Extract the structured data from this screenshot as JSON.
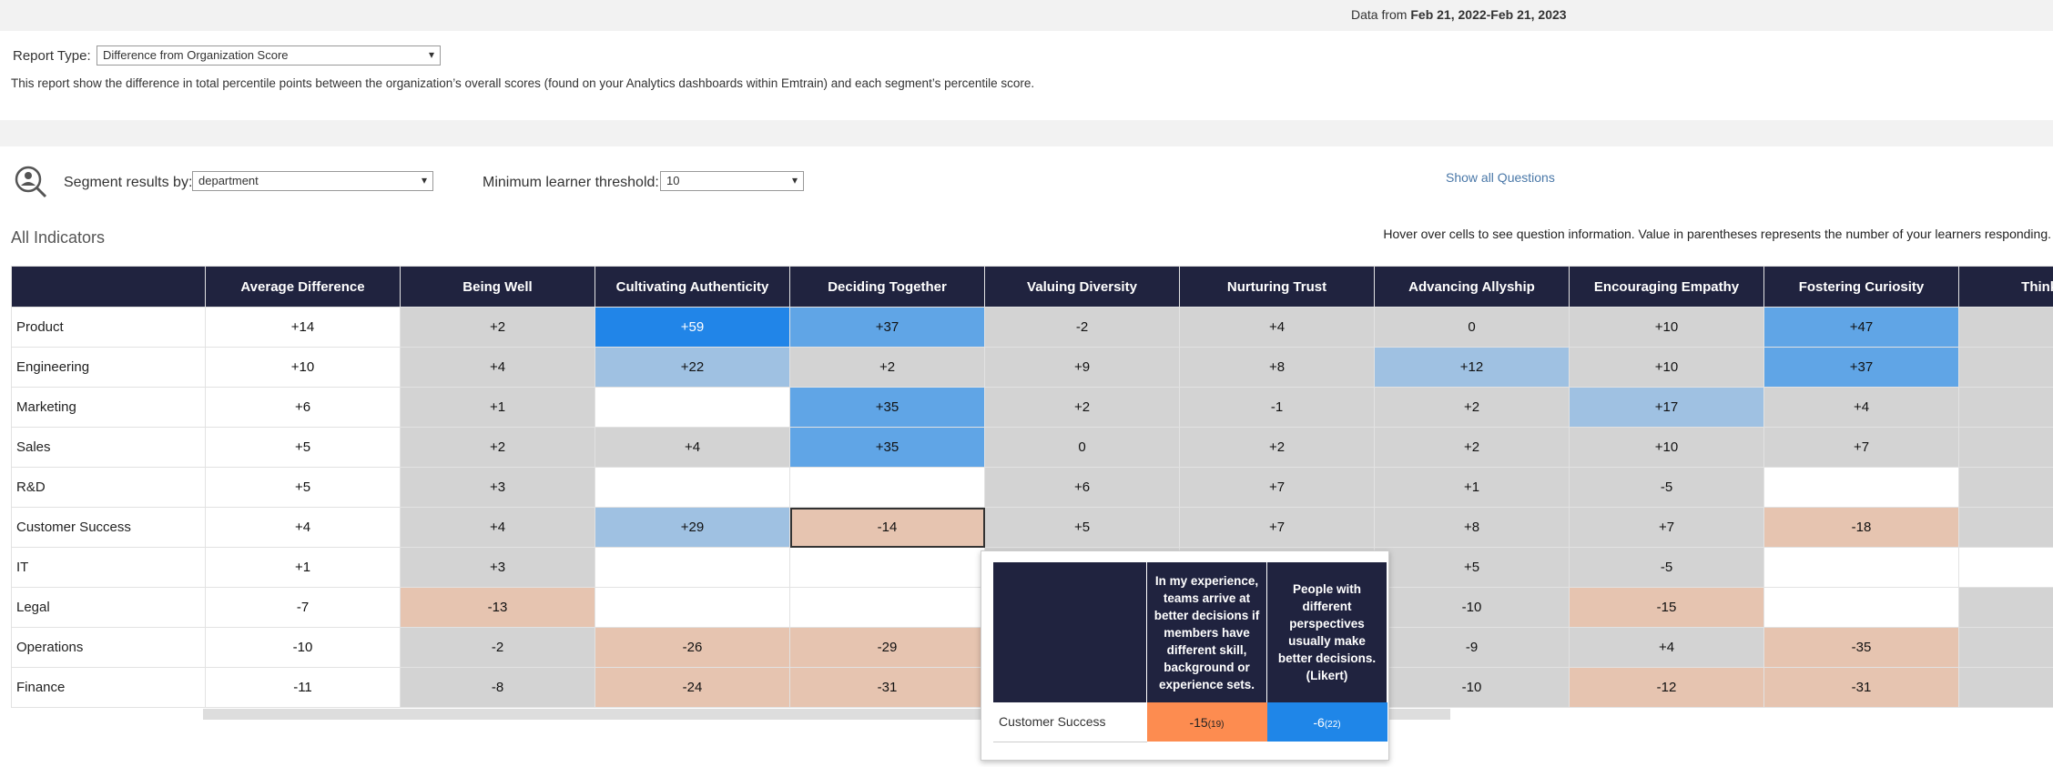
{
  "header": {
    "date_label": "Data from",
    "date_range": "Feb 21, 2022-Feb 21, 2023"
  },
  "report": {
    "label": "Report Type:",
    "selected": "Difference from Organization Score",
    "description": "This report show the difference in total percentile points between the organization’s overall scores (found on your Analytics dashboards within Emtrain) and each segment’s percentile score."
  },
  "segment": {
    "label": "Segment results by:",
    "selected": "department",
    "threshold_label": "Minimum learner threshold:",
    "threshold": 10,
    "link": "Show all Questions"
  },
  "table": {
    "title": "All Indicators",
    "note": "Hover over cells to see question information. Value in parentheses represents the number of your learners responding.",
    "columns": [
      "Average Difference",
      "Being Well",
      "Cultivating Authenticity",
      "Deciding Together",
      "Valuing Diversity",
      "Nurturing Trust",
      "Advancing Allyship",
      "Encouraging Empathy",
      "Fostering Curiosity",
      "Thinking S"
    ],
    "rows": [
      {
        "label": "Product",
        "cells": [
          "+14",
          "+2",
          "+59",
          "+37",
          "-2",
          "+4",
          "0",
          "+10",
          "+47",
          null
        ],
        "fills": [
          "#ffffff",
          "#d3d3d3",
          "#2185e8",
          "#60a5e6",
          "#d3d3d3",
          "#d3d3d3",
          "#d3d3d3",
          "#d3d3d3",
          "#60a5e6",
          "#d3d3d3"
        ]
      },
      {
        "label": "Engineering",
        "cells": [
          "+10",
          "+4",
          "+22",
          "+2",
          "+9",
          "+8",
          "+12",
          "+10",
          "+37",
          null
        ],
        "fills": [
          "#ffffff",
          "#d3d3d3",
          "#9fc1e2",
          "#d3d3d3",
          "#d3d3d3",
          "#d3d3d3",
          "#9fc1e2",
          "#d3d3d3",
          "#60a5e6",
          "#d3d3d3"
        ]
      },
      {
        "label": "Marketing",
        "cells": [
          "+6",
          "+1",
          null,
          "+35",
          "+2",
          "-1",
          "+2",
          "+17",
          "+4",
          null
        ],
        "fills": [
          "#ffffff",
          "#d3d3d3",
          "#ffffff",
          "#60a5e6",
          "#d3d3d3",
          "#d3d3d3",
          "#d3d3d3",
          "#9fc1e2",
          "#d3d3d3",
          "#d3d3d3"
        ]
      },
      {
        "label": "Sales",
        "cells": [
          "+5",
          "+2",
          "+4",
          "+35",
          "0",
          "+2",
          "+2",
          "+10",
          "+7",
          null
        ],
        "fills": [
          "#ffffff",
          "#d3d3d3",
          "#d3d3d3",
          "#60a5e6",
          "#d3d3d3",
          "#d3d3d3",
          "#d3d3d3",
          "#d3d3d3",
          "#d3d3d3",
          "#d3d3d3"
        ]
      },
      {
        "label": "R&D",
        "cells": [
          "+5",
          "+3",
          null,
          null,
          "+6",
          "+7",
          "+1",
          "-5",
          null,
          null
        ],
        "fills": [
          "#ffffff",
          "#d3d3d3",
          "#ffffff",
          "#ffffff",
          "#d3d3d3",
          "#d3d3d3",
          "#d3d3d3",
          "#d3d3d3",
          "#ffffff",
          "#d3d3d3"
        ]
      },
      {
        "label": "Customer Success",
        "cells": [
          "+4",
          "+4",
          "+29",
          "-14",
          "+5",
          "+7",
          "+8",
          "+7",
          "-18",
          null
        ],
        "fills": [
          "#ffffff",
          "#d3d3d3",
          "#9fc1e2",
          "#e6c4b0",
          "#d3d3d3",
          "#d3d3d3",
          "#d3d3d3",
          "#d3d3d3",
          "#e6c4b0",
          "#d3d3d3"
        ]
      },
      {
        "label": "IT",
        "cells": [
          "+1",
          "+3",
          null,
          null,
          null,
          null,
          "+5",
          "-5",
          null,
          null
        ],
        "fills": [
          "#ffffff",
          "#d3d3d3",
          "#ffffff",
          "#ffffff",
          "#d3d3d3",
          "#d3d3d3",
          "#d3d3d3",
          "#d3d3d3",
          "#ffffff",
          "#ffffff"
        ]
      },
      {
        "label": "Legal",
        "cells": [
          "-7",
          "-13",
          null,
          null,
          null,
          null,
          "-10",
          "-15",
          null,
          null
        ],
        "fills": [
          "#ffffff",
          "#e6c4b0",
          "#ffffff",
          "#ffffff",
          "#d3d3d3",
          "#d3d3d3",
          "#d3d3d3",
          "#e6c4b0",
          "#ffffff",
          "#d3d3d3"
        ]
      },
      {
        "label": "Operations",
        "cells": [
          "-10",
          "-2",
          "-26",
          "-29",
          null,
          null,
          "-9",
          "+4",
          "-35",
          null
        ],
        "fills": [
          "#ffffff",
          "#d3d3d3",
          "#e6c4b0",
          "#e6c4b0",
          "#d3d3d3",
          "#d3d3d3",
          "#d3d3d3",
          "#d3d3d3",
          "#e6c4b0",
          "#d3d3d3"
        ]
      },
      {
        "label": "Finance",
        "cells": [
          "-11",
          "-8",
          "-24",
          "-31",
          null,
          null,
          "-10",
          "-12",
          "-31",
          null
        ],
        "fills": [
          "#ffffff",
          "#d3d3d3",
          "#e6c4b0",
          "#e6c4b0",
          "#d3d3d3",
          "#d3d3d3",
          "#d3d3d3",
          "#e6c4b0",
          "#e6c4b0",
          "#d3d3d3"
        ]
      }
    ]
  },
  "tooltip": {
    "questions": [
      "In my experience, teams arrive at better decisions if members have different skill, background or experience sets.",
      "People with different perspectives usually make better decisions. (Likert)"
    ],
    "row": "Customer Success",
    "cells": [
      {
        "value": "-15",
        "count": "(19)",
        "color": "#fd8c50"
      },
      {
        "value": "-6",
        "count": "(22)",
        "color": "#1f86e8"
      }
    ]
  }
}
